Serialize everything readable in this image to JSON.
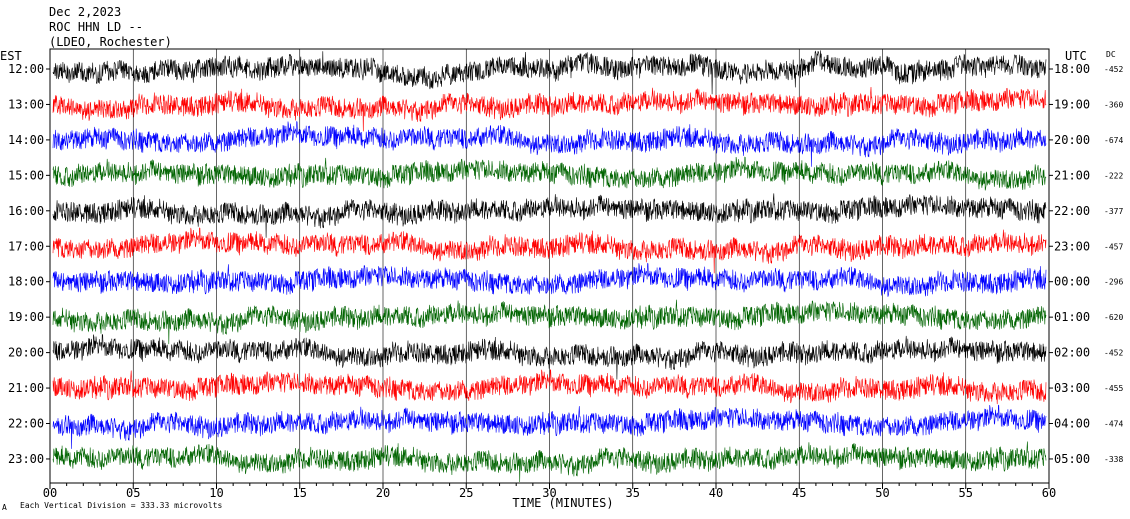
{
  "header": {
    "date": "Dec 2,2023",
    "station": "ROC HHN LD --",
    "location": "(LDEO, Rochester)"
  },
  "left_axis_title": "EST",
  "right_axis_title": "UTC",
  "dc_title": "DC",
  "footer": {
    "scale_icon": "A",
    "scale_text": "Each Vertical Division =  333.33 microvolts"
  },
  "chart_data": {
    "type": "line",
    "subtype": "helicorder",
    "xlabel": "TIME (MINUTES)",
    "x_ticks": [
      "00",
      "05",
      "10",
      "15",
      "20",
      "25",
      "30",
      "35",
      "40",
      "45",
      "50",
      "55",
      "60"
    ],
    "xlim": [
      0,
      60
    ],
    "grid": "vertical-every-5-minutes",
    "colors": [
      "#000000",
      "#ff0000",
      "#0000ff",
      "#006400"
    ],
    "rows": [
      {
        "est": "12:00",
        "utc": "18:00",
        "dc": "-452"
      },
      {
        "est": "13:00",
        "utc": "19:00",
        "dc": "-360"
      },
      {
        "est": "14:00",
        "utc": "20:00",
        "dc": "-674"
      },
      {
        "est": "15:00",
        "utc": "21:00",
        "dc": "-222"
      },
      {
        "est": "16:00",
        "utc": "22:00",
        "dc": "-377"
      },
      {
        "est": "17:00",
        "utc": "23:00",
        "dc": "-457"
      },
      {
        "est": "18:00",
        "utc": "00:00",
        "dc": "-296"
      },
      {
        "est": "19:00",
        "utc": "01:00",
        "dc": "-620"
      },
      {
        "est": "20:00",
        "utc": "02:00",
        "dc": "-452"
      },
      {
        "est": "21:00",
        "utc": "03:00",
        "dc": "-455"
      },
      {
        "est": "22:00",
        "utc": "04:00",
        "dc": "-474"
      },
      {
        "est": "23:00",
        "utc": "05:00",
        "dc": "-338"
      }
    ]
  }
}
